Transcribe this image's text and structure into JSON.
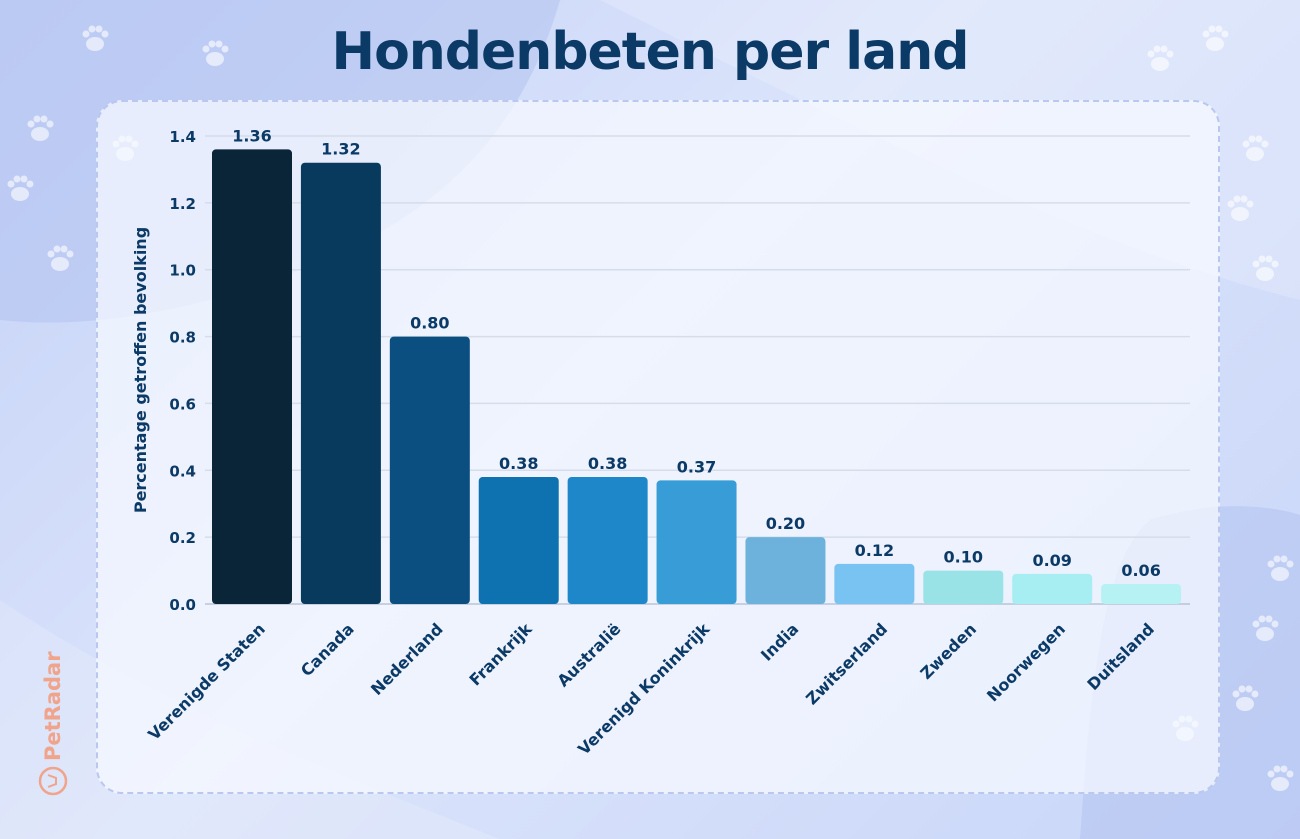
{
  "brand": {
    "name": "PetRadar",
    "color": "#f0a48c",
    "icon": "dog-head-icon"
  },
  "chart_data": {
    "type": "bar",
    "title": "Hondenbeten per land",
    "xlabel": "",
    "ylabel": "Percentage getroffen bevolking",
    "ylim": [
      0,
      1.4
    ],
    "yticks": [
      "0.0",
      "0.2",
      "0.4",
      "0.6",
      "0.8",
      "1.0",
      "1.2",
      "1.4"
    ],
    "grid": true,
    "categories": [
      "Verenigde Staten",
      "Canada",
      "Nederland",
      "Frankrijk",
      "Australië",
      "Verenigd Koninkrijk",
      "India",
      "Zwitserland",
      "Zweden",
      "Noorwegen",
      "Duitsland"
    ],
    "values": [
      1.36,
      1.32,
      0.8,
      0.38,
      0.38,
      0.37,
      0.2,
      0.12,
      0.1,
      0.09,
      0.06
    ],
    "value_labels": [
      "1.36",
      "1.32",
      "0.80",
      "0.38",
      "0.38",
      "0.37",
      "0.20",
      "0.12",
      "0.10",
      "0.09",
      "0.06"
    ],
    "colors": [
      "#0b2538",
      "#083a5e",
      "#0a4f80",
      "#0f72b0",
      "#1d87c9",
      "#389dd6",
      "#6cb2dc",
      "#78c3f2",
      "#99e2e6",
      "#a6eef1",
      "#b6f2f3"
    ]
  }
}
